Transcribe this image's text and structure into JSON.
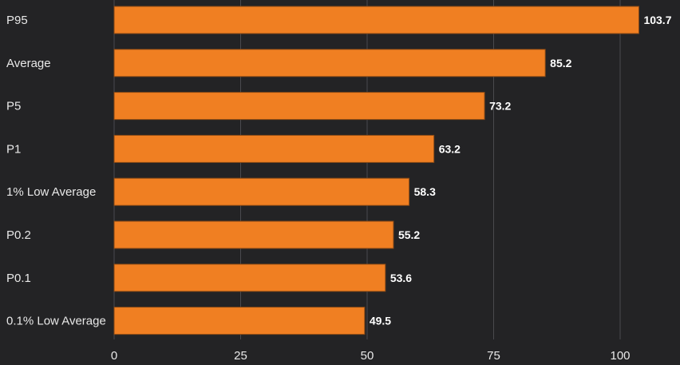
{
  "chart_data": {
    "type": "bar",
    "orientation": "horizontal",
    "title": "",
    "xlabel": "",
    "ylabel": "",
    "categories": [
      "P95",
      "Average",
      "P5",
      "P1",
      "1% Low Average",
      "P0.2",
      "P0.1",
      "0.1% Low Average"
    ],
    "values": [
      103.7,
      85.2,
      73.2,
      63.2,
      58.3,
      55.2,
      53.6,
      49.5
    ],
    "value_labels": [
      "103.7",
      "85.2",
      "73.2",
      "63.2",
      "58.3",
      "55.2",
      "53.6",
      "49.5"
    ],
    "xlim": [
      0,
      110
    ],
    "x_ticks": [
      0,
      25,
      50,
      75,
      100
    ],
    "x_tick_labels": [
      "0",
      "25",
      "50",
      "75",
      "100"
    ],
    "grid": true,
    "legend": "none",
    "colors": {
      "background": "#232325",
      "bar": "#f07f22",
      "bar_border": "#8a4a16",
      "grid": "#4a4a4e",
      "text": "#e8e8e8"
    }
  }
}
